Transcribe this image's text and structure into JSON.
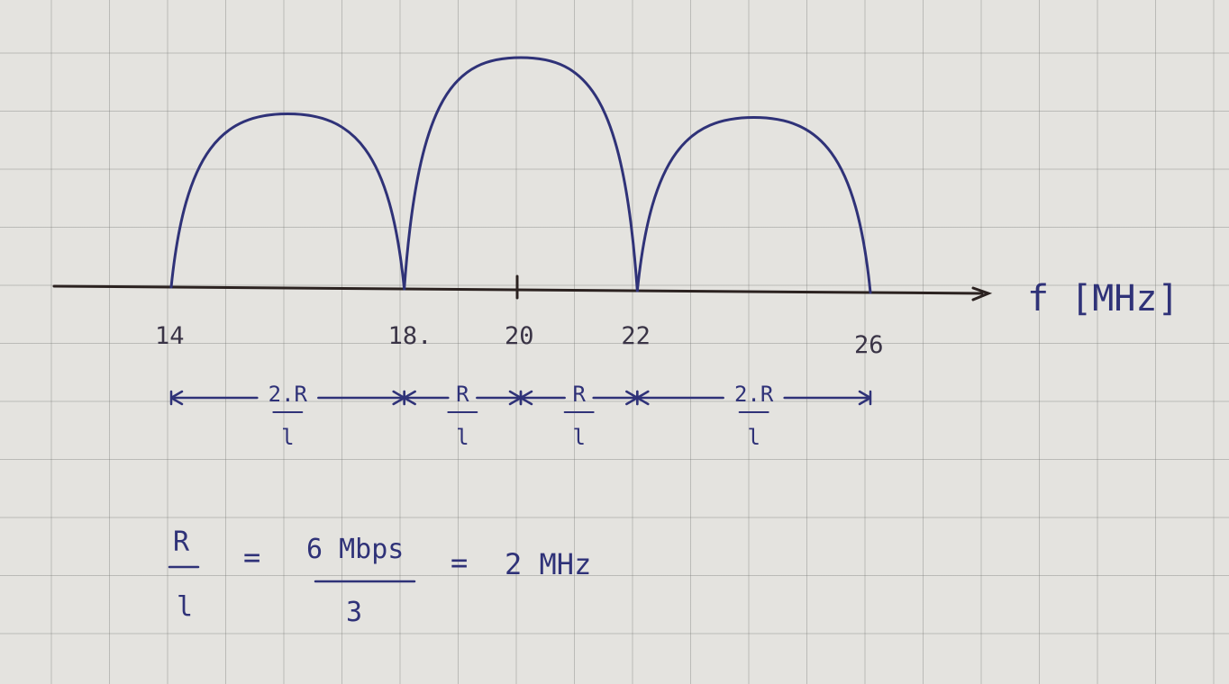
{
  "chart_data": {
    "type": "line",
    "xlabel": "f [MHz]",
    "x": [
      14,
      18,
      20,
      22,
      26
    ],
    "ticks": [
      "14",
      "18.",
      "20",
      "22",
      "26"
    ],
    "lobes": [
      {
        "from": 14,
        "to": 18,
        "peak": 0.75
      },
      {
        "from": 18,
        "to": 22,
        "peak": 1.0
      },
      {
        "from": 22,
        "to": 26,
        "peak": 0.75
      }
    ]
  },
  "spans": [
    {
      "from": 14,
      "to": 18,
      "numerator": "2.R",
      "denominator": "l"
    },
    {
      "from": 18,
      "to": 20,
      "numerator": "R",
      "denominator": "l"
    },
    {
      "from": 20,
      "to": 22,
      "numerator": "R",
      "denominator": "l"
    },
    {
      "from": 22,
      "to": 26,
      "numerator": "2.R",
      "denominator": "l"
    }
  ],
  "equation": {
    "lhs_num": "R",
    "lhs_den": "l",
    "eq1": "=",
    "mid_num": "6 Mbps",
    "mid_den": "3",
    "eq2": "=",
    "result": "2 MHz"
  },
  "colors": {
    "ink": "#2f3278",
    "axis": "#2b2220",
    "paper": "#e4e3df"
  }
}
